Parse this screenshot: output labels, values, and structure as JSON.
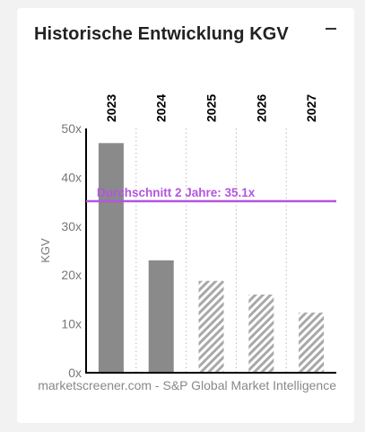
{
  "card": {
    "title": "Historische Entwicklung KGV",
    "collapse_icon": "minus-icon"
  },
  "chart_data": {
    "type": "bar",
    "title": "",
    "categories": [
      "2023",
      "2024",
      "2025",
      "2026",
      "2027"
    ],
    "values": [
      47.0,
      23.0,
      18.8,
      16.0,
      12.3
    ],
    "estimated": [
      false,
      false,
      true,
      true,
      true
    ],
    "ylabel": "KGV",
    "xlabel": "",
    "ylim": [
      0,
      50
    ],
    "yticks": [
      "0x",
      "10x",
      "20x",
      "30x",
      "40x",
      "50x"
    ],
    "ytick_values": [
      0,
      10,
      20,
      30,
      40,
      50
    ],
    "category_axis": "top",
    "grid": "vertical-dotted",
    "average_line": {
      "label": "Durchschnitt 2 Jahre: 35.1x",
      "value": 35.1,
      "color": "#b455e0"
    },
    "source": "marketscreener.com - S&P Global Market Intelligence",
    "colors": {
      "bar": "#8a8a8a",
      "hatch_stripe": "#a8a8a8"
    }
  }
}
